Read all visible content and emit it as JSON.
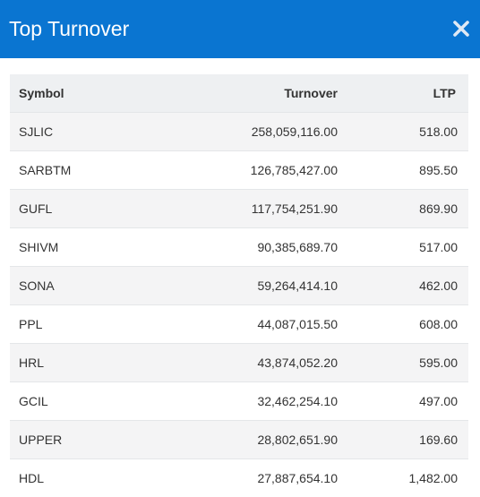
{
  "dialog": {
    "title": "Top Turnover",
    "close_icon": "close-icon"
  },
  "table": {
    "columns": [
      "Symbol",
      "Turnover",
      "LTP"
    ],
    "rows": [
      {
        "symbol": "SJLIC",
        "turnover": "258,059,116.00",
        "ltp": "518.00"
      },
      {
        "symbol": "SARBTM",
        "turnover": "126,785,427.00",
        "ltp": "895.50"
      },
      {
        "symbol": "GUFL",
        "turnover": "117,754,251.90",
        "ltp": "869.90"
      },
      {
        "symbol": "SHIVM",
        "turnover": "90,385,689.70",
        "ltp": "517.00"
      },
      {
        "symbol": "SONA",
        "turnover": "59,264,414.10",
        "ltp": "462.00"
      },
      {
        "symbol": "PPL",
        "turnover": "44,087,015.50",
        "ltp": "608.00"
      },
      {
        "symbol": "HRL",
        "turnover": "43,874,052.20",
        "ltp": "595.00"
      },
      {
        "symbol": "GCIL",
        "turnover": "32,462,254.10",
        "ltp": "497.00"
      },
      {
        "symbol": "UPPER",
        "turnover": "28,802,651.90",
        "ltp": "169.60"
      },
      {
        "symbol": "HDL",
        "turnover": "27,887,654.10",
        "ltp": "1,482.00"
      }
    ]
  },
  "colors": {
    "header_bg": "#0a75d1",
    "header_text": "#ffffff",
    "row_alt": "#f4f4f5",
    "table_head_bg": "#eef0f2"
  }
}
